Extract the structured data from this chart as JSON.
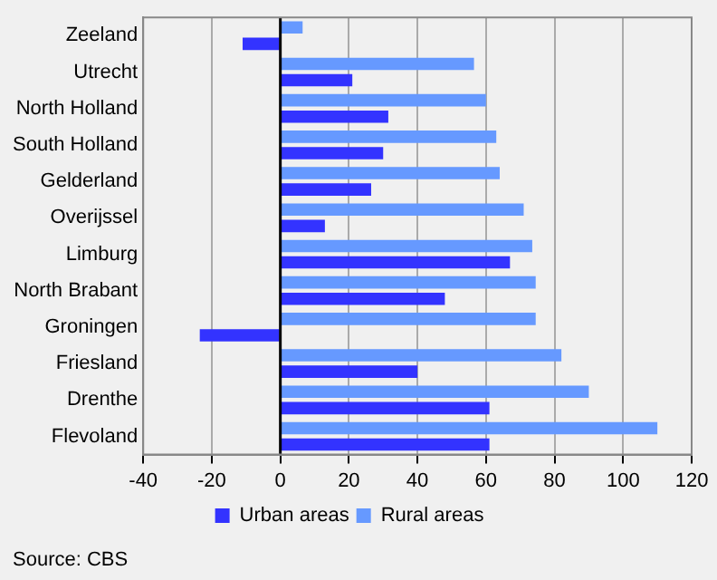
{
  "chart_data": {
    "type": "bar",
    "orientation": "horizontal",
    "categories": [
      "Zeeland",
      "Utrecht",
      "North Holland",
      "South Holland",
      "Gelderland",
      "Overijssel",
      "Limburg",
      "North Brabant",
      "Groningen",
      "Friesland",
      "Drenthe",
      "Flevoland"
    ],
    "series": [
      {
        "name": "Urban areas",
        "color": "#3333ff",
        "values": [
          -11,
          21,
          31.5,
          30,
          26.5,
          13,
          67,
          48,
          -23.5,
          40,
          61,
          61
        ]
      },
      {
        "name": "Rural areas",
        "color": "#6699ff",
        "values": [
          6.5,
          56.5,
          60,
          63,
          64,
          71,
          73.5,
          74.5,
          74.5,
          82,
          90,
          110
        ]
      }
    ],
    "xlim": [
      -40,
      120
    ],
    "xticks": [
      -40,
      -20,
      0,
      20,
      40,
      60,
      80,
      100,
      120
    ],
    "grid": "x",
    "legend": "bottom",
    "annotations": [
      "Source: CBS"
    ]
  }
}
